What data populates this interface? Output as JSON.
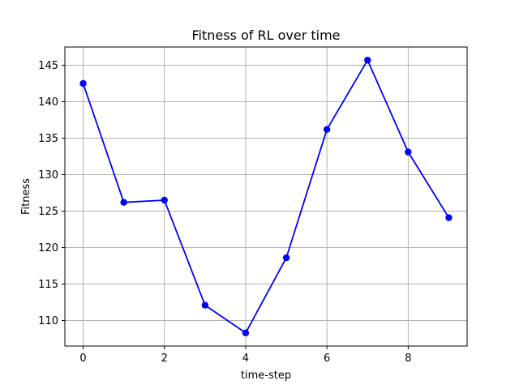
{
  "chart_data": {
    "type": "line",
    "title": "Fitness of RL over time",
    "xlabel": "time-step",
    "ylabel": "Fitness",
    "x": [
      0,
      1,
      2,
      3,
      4,
      5,
      6,
      7,
      8,
      9
    ],
    "series": [
      {
        "values": [
          142.5,
          126.2,
          126.5,
          112.1,
          108.3,
          118.6,
          136.2,
          145.7,
          133.1,
          124.1
        ],
        "color": "#0000ff",
        "marker": "circle"
      }
    ],
    "xlim": [
      -0.45,
      9.45
    ],
    "ylim": [
      106.5,
      147.5
    ],
    "xticks": [
      0,
      2,
      4,
      6,
      8
    ],
    "yticks": [
      110,
      115,
      120,
      125,
      130,
      135,
      140,
      145
    ],
    "grid": true,
    "legend": false
  }
}
